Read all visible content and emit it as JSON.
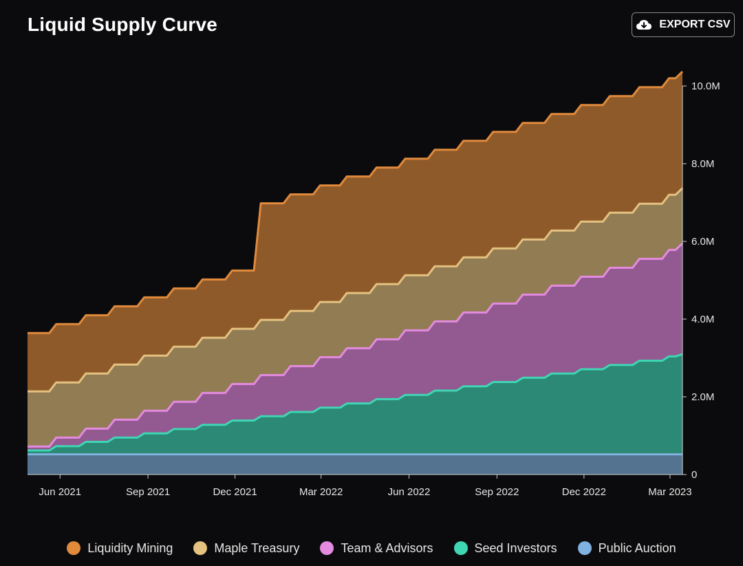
{
  "header": {
    "title": "Liquid Supply Curve",
    "export_label": "EXPORT CSV",
    "export_icon": "cloud-download-icon"
  },
  "colors": {
    "background": "#0b0b0d",
    "axis": "#cfcfcf"
  },
  "chart_data": {
    "type": "area",
    "stacked": true,
    "title": "Liquid Supply Curve",
    "xlabel": "",
    "ylabel": "",
    "grid": false,
    "legend_position": "bottom",
    "y_axis_position": "right",
    "ylim": [
      0,
      10000000
    ],
    "y_ticks": [
      0,
      2000000,
      4000000,
      6000000,
      8000000,
      10000000
    ],
    "y_tick_labels": [
      "0",
      "2.0M",
      "4.0M",
      "6.0M",
      "8.0M",
      "10.0M"
    ],
    "xlim": [
      "2021-04-28",
      "2023-03-14"
    ],
    "x_ticks": [
      "2021-06-01",
      "2021-09-01",
      "2021-12-01",
      "2022-03-01",
      "2022-06-01",
      "2022-09-01",
      "2022-12-01",
      "2023-03-01"
    ],
    "x_tick_labels": [
      "Jun 2021",
      "Sep 2021",
      "Dec 2021",
      "Mar 2022",
      "Jun 2022",
      "Sep 2022",
      "Dec 2022",
      "Mar 2023"
    ],
    "x": [
      "2021-04-28",
      "2021-05-28",
      "2021-06-28",
      "2021-07-28",
      "2021-08-28",
      "2021-09-28",
      "2021-10-28",
      "2021-11-28",
      "2021-12-28",
      "2022-01-28",
      "2022-02-28",
      "2022-03-28",
      "2022-04-28",
      "2022-05-28",
      "2022-06-28",
      "2022-07-28",
      "2022-08-28",
      "2022-09-28",
      "2022-10-28",
      "2022-11-28",
      "2022-12-28",
      "2023-01-28",
      "2023-02-28",
      "2023-03-14"
    ],
    "series": [
      {
        "name": "Public Auction",
        "color": "#7fb2e0",
        "values": [
          520000,
          520000,
          520000,
          520000,
          520000,
          520000,
          520000,
          520000,
          520000,
          520000,
          520000,
          520000,
          520000,
          520000,
          520000,
          520000,
          520000,
          520000,
          520000,
          520000,
          520000,
          520000,
          520000,
          520000
        ]
      },
      {
        "name": "Seed Investors",
        "color": "#3fd6b4",
        "values": [
          100000,
          210000,
          320000,
          430000,
          540000,
          650000,
          760000,
          870000,
          980000,
          1090000,
          1200000,
          1310000,
          1420000,
          1530000,
          1640000,
          1750000,
          1860000,
          1970000,
          2080000,
          2190000,
          2300000,
          2410000,
          2520000,
          2580000
        ]
      },
      {
        "name": "Team & Advisors",
        "color": "#e48be0",
        "values": [
          100000,
          220000,
          340000,
          460000,
          580000,
          700000,
          820000,
          940000,
          1060000,
          1180000,
          1300000,
          1420000,
          1540000,
          1660000,
          1780000,
          1900000,
          2020000,
          2140000,
          2260000,
          2380000,
          2500000,
          2620000,
          2740000,
          2850000
        ]
      },
      {
        "name": "Maple Treasury",
        "color": "#e5c27f",
        "values": [
          1420000,
          1420000,
          1420000,
          1420000,
          1420000,
          1420000,
          1420000,
          1420000,
          1420000,
          1420000,
          1420000,
          1420000,
          1420000,
          1420000,
          1420000,
          1420000,
          1420000,
          1420000,
          1420000,
          1420000,
          1420000,
          1420000,
          1420000,
          1420000
        ]
      },
      {
        "name": "Liquidity Mining",
        "color": "#e08a3c",
        "values": [
          1500000,
          1500000,
          1500000,
          1500000,
          1500000,
          1500000,
          1500000,
          1500000,
          3000000,
          3000000,
          3000000,
          3000000,
          3000000,
          3000000,
          3000000,
          3000000,
          3000000,
          3000000,
          3000000,
          3000000,
          3000000,
          3000000,
          3000000,
          3000000
        ]
      }
    ]
  }
}
